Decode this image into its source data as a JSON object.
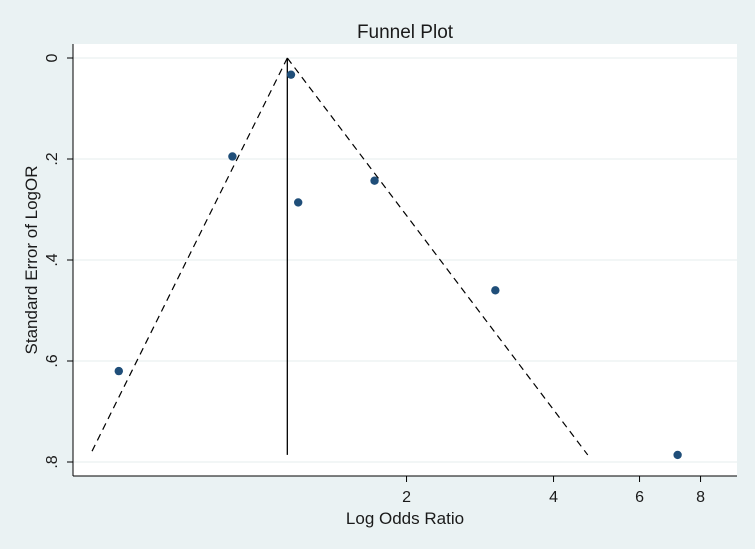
{
  "chart_data": {
    "type": "scatter",
    "title": "Funnel Plot",
    "xlabel": "Log Odds Ratio",
    "ylabel": "Standard Error of LogOR",
    "x_scale": "log",
    "y_axis_inverted": true,
    "x_range": [
      0.415,
      9.5
    ],
    "y_range": [
      0,
      0.8
    ],
    "x_ticks": [
      {
        "value": 2,
        "label": "2"
      },
      {
        "value": 4,
        "label": "4"
      },
      {
        "value": 6,
        "label": "6"
      },
      {
        "value": 8,
        "label": "8"
      }
    ],
    "y_ticks": [
      {
        "value": 0,
        "label": "0"
      },
      {
        "value": 0.2,
        "label": ".2"
      },
      {
        "value": 0.4,
        "label": ".4"
      },
      {
        "value": 0.6,
        "label": ".6"
      },
      {
        "value": 0.8,
        "label": ".8"
      }
    ],
    "grid": "horizontal",
    "points": [
      {
        "x": 1.16,
        "y": 0.033
      },
      {
        "x": 0.88,
        "y": 0.195
      },
      {
        "x": 1.2,
        "y": 0.286
      },
      {
        "x": 1.72,
        "y": 0.243
      },
      {
        "x": 3.04,
        "y": 0.46
      },
      {
        "x": 0.515,
        "y": 0.62
      },
      {
        "x": 7.18,
        "y": 0.786
      }
    ],
    "pooled_estimate": 1.14,
    "funnel_limits": {
      "apex": {
        "x": 1.14,
        "y": 0
      },
      "left_base": {
        "x": 0.45,
        "y": 0.786
      },
      "right_base": {
        "x": 4.7,
        "y": 0.786
      }
    },
    "colors": {
      "background": "#eaf2f3",
      "plot_background": "#ffffff",
      "marker": "#1f4e79",
      "line": "#000000",
      "grid": "#e6ecee"
    }
  }
}
